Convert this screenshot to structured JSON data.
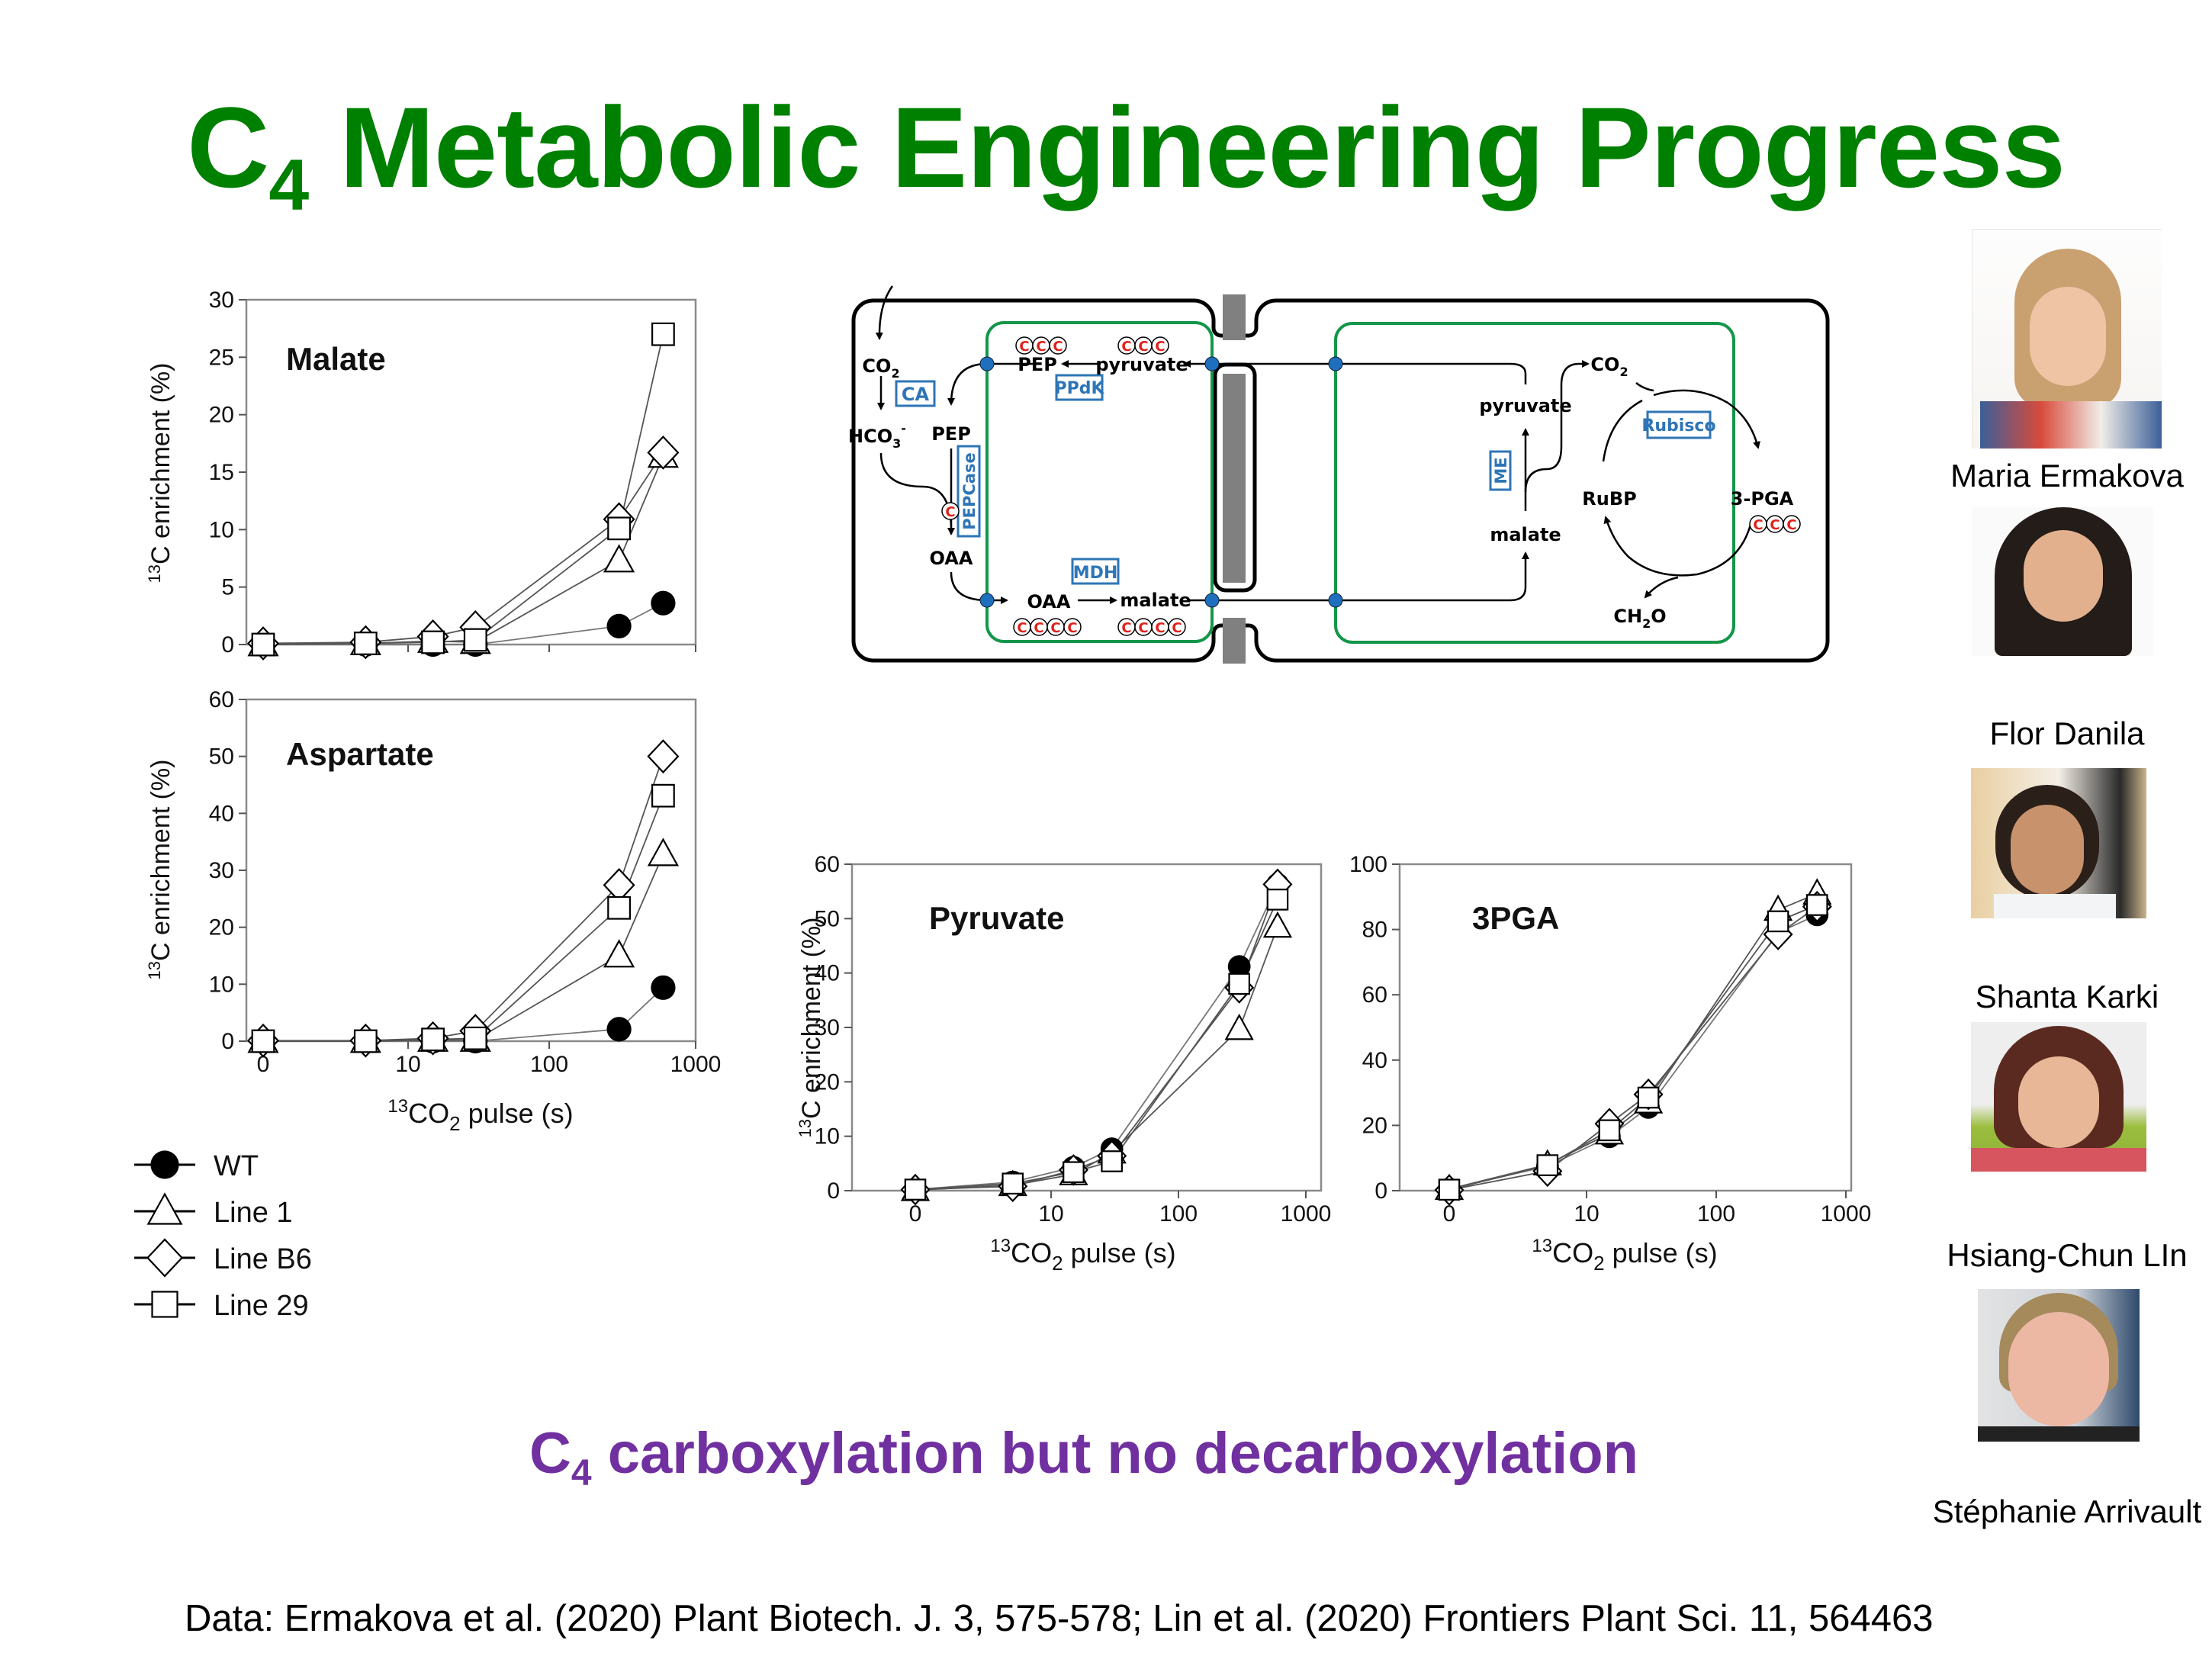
{
  "slide": {
    "title_prefix": "C",
    "title_sub": "4",
    "title_rest": " Metabolic Engineering Progress",
    "subtitle_prefix": "C",
    "subtitle_sub": "4",
    "subtitle_rest": " carboxylation but no decarboxylation",
    "footer": "Data: Ermakova et al. (2020) Plant Biotech. J. 3, 575-578; Lin et al. (2020) Frontiers Plant Sci. 11, 564463",
    "colors": {
      "title": "#008000",
      "subtitle": "#7030A0",
      "enzyme": "#2E75B6",
      "chloroplast": "#14964A",
      "carbon": "#E0201B",
      "transporter": "#1F6FBF",
      "wall": "#808080"
    }
  },
  "legend": [
    {
      "label": "WT",
      "marker": "filled-circle"
    },
    {
      "label": "Line 1",
      "marker": "open-triangle"
    },
    {
      "label": "Line B6",
      "marker": "open-diamond"
    },
    {
      "label": "Line 29",
      "marker": "open-square"
    }
  ],
  "chart_data": [
    {
      "type": "line",
      "title": "Malate",
      "xlabel_sup": "13",
      "xlabel_main": "CO",
      "xlabel_sub": "2",
      "xlabel_tail": " pulse (s)",
      "ylabel_sup": "13",
      "ylabel_main": "C enrichment (%)",
      "x": [
        0,
        5,
        15,
        30,
        300,
        600
      ],
      "x_tick_labels": [],
      "x_ticks": [
        0,
        10,
        100,
        1000
      ],
      "xscale": "log (0 shown at origin)",
      "ylim": [
        0,
        30
      ],
      "y_ticks": [
        "0",
        "5",
        "10",
        "15",
        "20",
        "25",
        "30"
      ],
      "series": [
        {
          "name": "WT",
          "values": [
            0,
            0,
            0,
            0,
            1.6,
            3.6
          ]
        },
        {
          "name": "Line 1",
          "values": [
            0,
            0.1,
            0.3,
            0.2,
            7.3,
            16.4
          ]
        },
        {
          "name": "Line B6",
          "values": [
            0.1,
            0.2,
            0.7,
            1.5,
            10.9,
            16.7
          ]
        },
        {
          "name": "Line 29",
          "values": [
            0,
            0.1,
            0.2,
            0.4,
            10.1,
            27.0
          ]
        }
      ]
    },
    {
      "type": "line",
      "title": "Aspartate",
      "xlabel_sup": "13",
      "xlabel_main": "CO",
      "xlabel_sub": "2",
      "xlabel_tail": " pulse (s)",
      "ylabel_sup": "13",
      "ylabel_main": "C enrichment (%)",
      "x": [
        0,
        5,
        15,
        30,
        300,
        600
      ],
      "x_tick_labels": [
        "0",
        "10",
        "100",
        "1000"
      ],
      "x_ticks": [
        0,
        10,
        100,
        1000
      ],
      "ylim": [
        0,
        60
      ],
      "y_ticks": [
        "0",
        "10",
        "20",
        "30",
        "40",
        "50",
        "60"
      ],
      "series": [
        {
          "name": "WT",
          "values": [
            0,
            0,
            0,
            0,
            2.1,
            9.4
          ]
        },
        {
          "name": "Line 1",
          "values": [
            0,
            0,
            0.2,
            0.2,
            15.0,
            32.8
          ]
        },
        {
          "name": "Line B6",
          "values": [
            0.1,
            0.1,
            0.5,
            1.8,
            27.4,
            50.0
          ]
        },
        {
          "name": "Line 29",
          "values": [
            0,
            0,
            0.3,
            0.5,
            23.4,
            43.1
          ]
        }
      ]
    },
    {
      "type": "line",
      "title": "Pyruvate",
      "xlabel_sup": "13",
      "xlabel_main": "CO",
      "xlabel_sub": "2",
      "xlabel_tail": " pulse (s)",
      "ylabel_sup": "13",
      "ylabel_main": "C enrichment (%)",
      "x": [
        0,
        5,
        15,
        30,
        300,
        600
      ],
      "x_tick_labels": [
        "0",
        "10",
        "100",
        "1000"
      ],
      "x_ticks": [
        0,
        10,
        100,
        1000
      ],
      "ylim": [
        0,
        60
      ],
      "y_ticks": [
        "0",
        "10",
        "20",
        "30",
        "40",
        "50",
        "60"
      ],
      "series": [
        {
          "name": "WT",
          "values": [
            0.2,
            1.6,
            4.3,
            7.7,
            41.2,
            56.3
          ]
        },
        {
          "name": "Line 1",
          "values": [
            0.1,
            1.0,
            3.0,
            7.0,
            29.7,
            48.5
          ]
        },
        {
          "name": "Line B6",
          "values": [
            0.2,
            0.8,
            3.8,
            6.4,
            37.3,
            56.3
          ]
        },
        {
          "name": "Line 29",
          "values": [
            0.2,
            1.3,
            3.4,
            5.4,
            38.0,
            53.5
          ]
        }
      ]
    },
    {
      "type": "line",
      "title": "3PGA",
      "xlabel_sup": "13",
      "xlabel_main": "CO",
      "xlabel_sub": "2",
      "xlabel_tail": " pulse (s)",
      "ylabel_sup": "",
      "ylabel_main": "",
      "x": [
        0,
        5,
        15,
        30,
        300,
        600
      ],
      "x_tick_labels": [
        "0",
        "10",
        "100",
        "1000"
      ],
      "x_ticks": [
        0,
        10,
        100,
        1000
      ],
      "ylim": [
        0,
        100
      ],
      "y_ticks": [
        "0",
        "20",
        "40",
        "60",
        "80",
        "100"
      ],
      "series": [
        {
          "name": "WT",
          "values": [
            0.5,
            7.5,
            16.5,
            25.5,
            79.0,
            84.5
          ]
        },
        {
          "name": "Line 1",
          "values": [
            0.5,
            8.0,
            17.5,
            27.0,
            86.0,
            91.0
          ]
        },
        {
          "name": "Line B6",
          "values": [
            0.2,
            6.0,
            20.5,
            29.5,
            78.5,
            87.0
          ]
        },
        {
          "name": "Line 29",
          "values": [
            0.3,
            7.8,
            18.5,
            28.5,
            82.5,
            87.5
          ]
        }
      ]
    }
  ],
  "diagram": {
    "mesophyll": {
      "co2": "CO",
      "co2_sub": "2",
      "hco3": "HCO",
      "hco3_sub": "3",
      "hco3_sup": "-",
      "pep_left": "PEP",
      "oaa_left": "OAA",
      "ca": "CA",
      "pepcase": "PEPCase",
      "pep_top": "PEP",
      "pyruvate_top": "pyruvate",
      "ppdk": "PPdK",
      "mdh": "MDH",
      "oaa_bottom": "OAA",
      "malate_bottom": "malate",
      "carbon_symbol": "C"
    },
    "bundle_sheath": {
      "pyruvate": "pyruvate",
      "malate": "malate",
      "me": "ME",
      "co2": "CO",
      "co2_sub": "2",
      "rubisco": "Rubisco",
      "rubp": "RuBP",
      "pga": "3-PGA",
      "ch2o_a": "CH",
      "ch2o_sub": "2",
      "ch2o_b": "O"
    }
  },
  "people": [
    {
      "name": "Maria  Ermakova"
    },
    {
      "name": "Flor Danila"
    },
    {
      "name": "Shanta Karki"
    },
    {
      "name": "Hsiang-Chun LIn"
    },
    {
      "name": "Stéphanie Arrivault"
    }
  ]
}
